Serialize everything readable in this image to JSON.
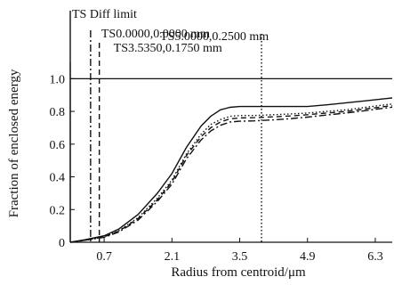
{
  "chart_data": {
    "type": "line",
    "title": "",
    "xlabel": "Radius from centroid/μm",
    "ylabel": "Fraction of enclosed energy",
    "xlim": [
      0,
      6.65
    ],
    "ylim": [
      0,
      1.1
    ],
    "x_ticks": [
      0.7,
      2.1,
      3.5,
      4.9,
      6.3
    ],
    "x_tick_labels": [
      "0.7",
      "2.1",
      "3.5",
      "4.9",
      "6.3"
    ],
    "y_ticks": [
      0,
      0.2,
      0.4,
      0.6,
      0.8,
      1.0
    ],
    "y_tick_labels": [
      "0",
      "0.2",
      "0.4",
      "0.6",
      "0.8",
      "1.0"
    ],
    "grid": false,
    "reference_line": {
      "y": 1.0
    },
    "annotations": [
      {
        "text": "TS Diff limit",
        "x": 0.0,
        "style": "solid"
      },
      {
        "text": "TS0.0000,0.0000 mm",
        "x": 0.42,
        "style": "dashdot"
      },
      {
        "text": "TS3.5350,0.1750 mm",
        "x": 0.6,
        "style": "dashed"
      },
      {
        "text": "TS5.0000,0.2500 mm",
        "x": 3.95,
        "style": "dotted"
      }
    ],
    "series": [
      {
        "style": "solid",
        "x": [
          0,
          0.3,
          0.7,
          1.0,
          1.4,
          1.8,
          2.1,
          2.4,
          2.7,
          2.9,
          3.1,
          3.3,
          3.5,
          3.8,
          4.2,
          4.6,
          4.9,
          5.3,
          5.7,
          6.1,
          6.5,
          6.65
        ],
        "values": [
          0,
          0.015,
          0.04,
          0.08,
          0.17,
          0.3,
          0.42,
          0.58,
          0.71,
          0.77,
          0.81,
          0.825,
          0.83,
          0.83,
          0.83,
          0.83,
          0.83,
          0.84,
          0.853,
          0.865,
          0.878,
          0.882
        ]
      },
      {
        "style": "dotted",
        "x": [
          0,
          0.3,
          0.7,
          1.0,
          1.4,
          1.8,
          2.1,
          2.4,
          2.7,
          2.9,
          3.1,
          3.3,
          3.5,
          3.8,
          4.2,
          4.6,
          4.9,
          5.3,
          5.7,
          6.1,
          6.5,
          6.65
        ],
        "values": [
          0,
          0.013,
          0.035,
          0.07,
          0.15,
          0.27,
          0.38,
          0.54,
          0.66,
          0.72,
          0.75,
          0.77,
          0.775,
          0.775,
          0.78,
          0.785,
          0.79,
          0.8,
          0.81,
          0.825,
          0.84,
          0.845
        ]
      },
      {
        "style": "dashed",
        "x": [
          0,
          0.3,
          0.7,
          1.0,
          1.4,
          1.8,
          2.1,
          2.4,
          2.7,
          2.9,
          3.1,
          3.3,
          3.5,
          3.8,
          4.2,
          4.6,
          4.9,
          5.3,
          5.7,
          6.1,
          6.5,
          6.65
        ],
        "values": [
          0,
          0.012,
          0.033,
          0.067,
          0.145,
          0.26,
          0.37,
          0.53,
          0.645,
          0.7,
          0.735,
          0.755,
          0.76,
          0.762,
          0.767,
          0.773,
          0.78,
          0.79,
          0.8,
          0.815,
          0.83,
          0.835
        ]
      },
      {
        "style": "dashdot",
        "x": [
          0,
          0.3,
          0.7,
          1.0,
          1.4,
          1.8,
          2.1,
          2.4,
          2.7,
          2.9,
          3.1,
          3.3,
          3.5,
          3.8,
          4.2,
          4.6,
          4.9,
          5.3,
          5.7,
          6.1,
          6.5,
          6.65
        ],
        "values": [
          0,
          0.012,
          0.03,
          0.062,
          0.135,
          0.25,
          0.355,
          0.51,
          0.625,
          0.68,
          0.715,
          0.735,
          0.74,
          0.742,
          0.748,
          0.757,
          0.765,
          0.778,
          0.79,
          0.805,
          0.82,
          0.826
        ]
      }
    ]
  }
}
